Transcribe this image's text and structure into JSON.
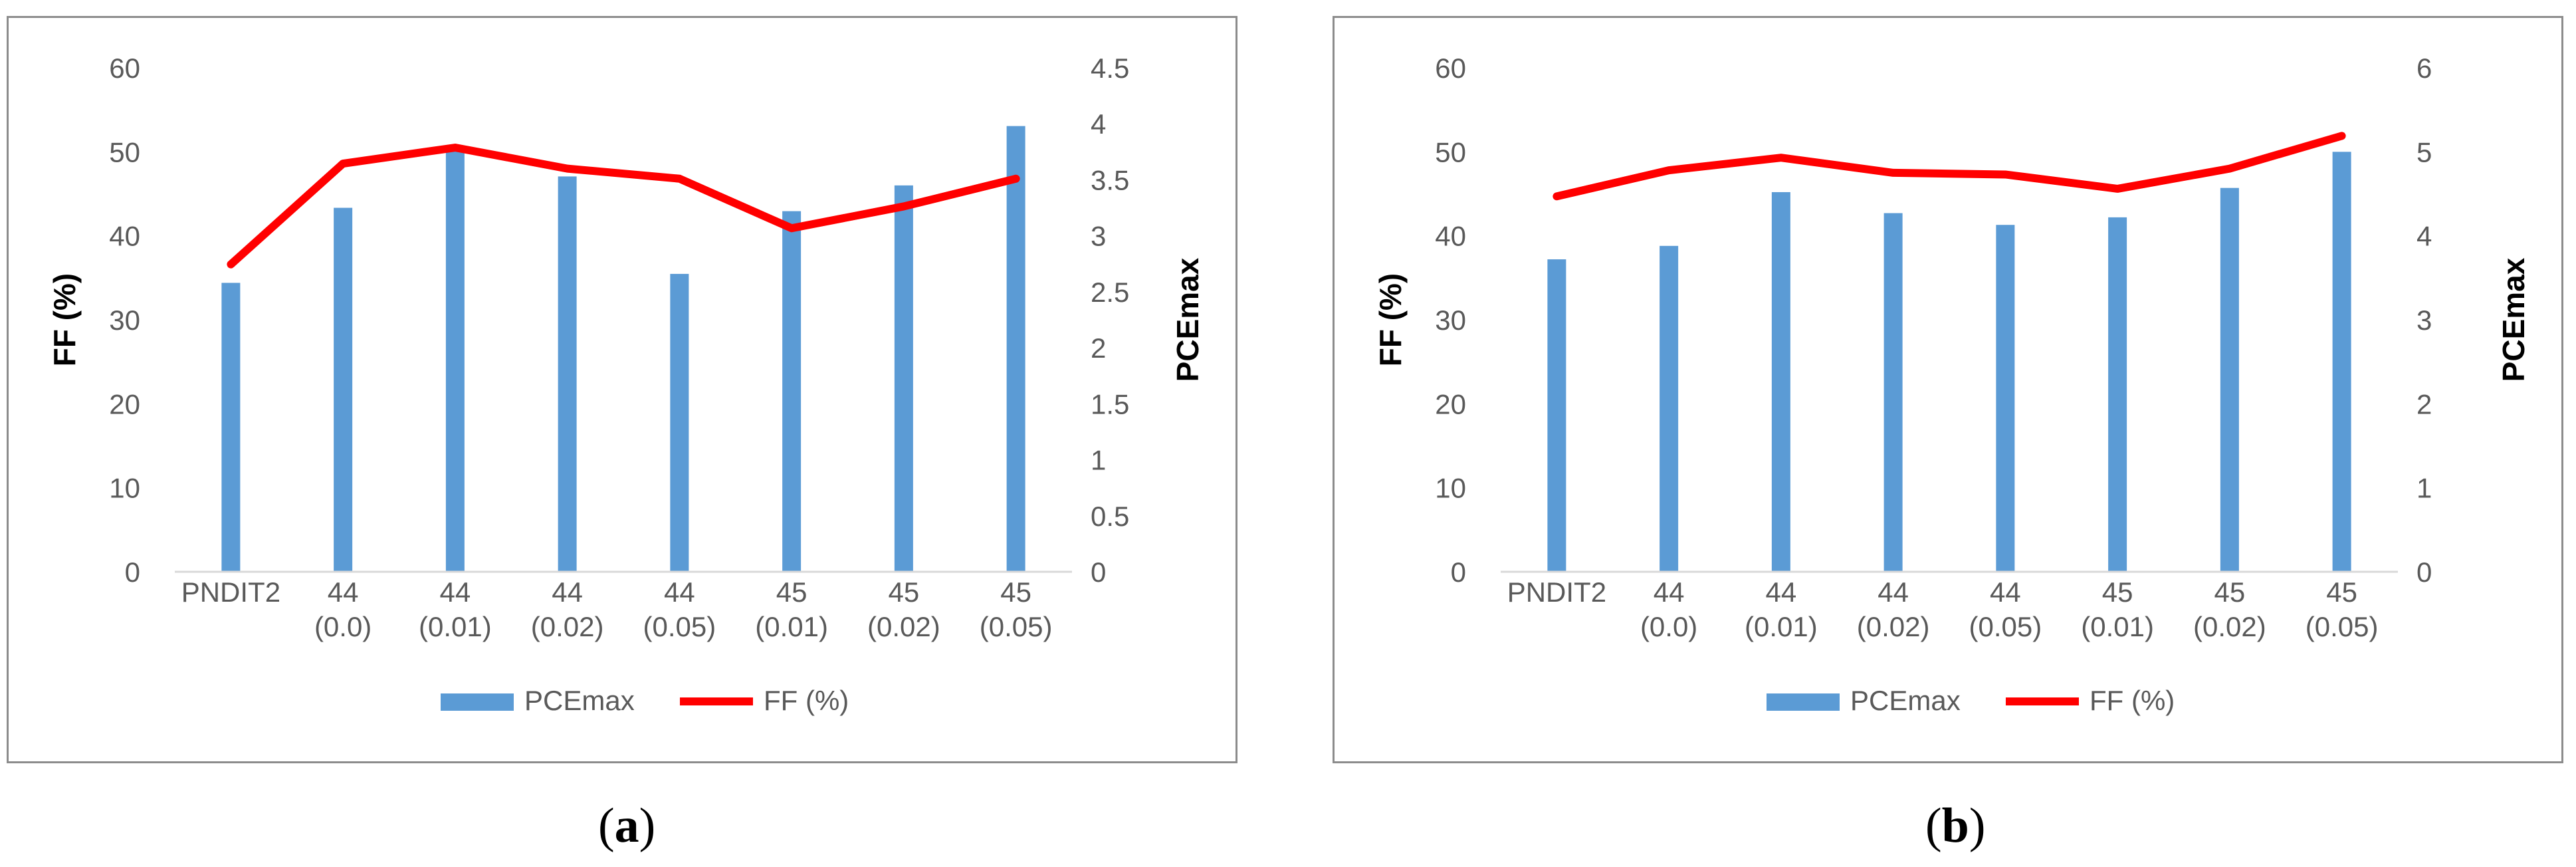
{
  "panels": [
    {
      "caption": "a",
      "chart_data": {
        "type": "bar+line",
        "categories": [
          [
            "PNDIT2"
          ],
          [
            "44",
            "(0.0)"
          ],
          [
            "44",
            "(0.01)"
          ],
          [
            "44",
            "(0.02)"
          ],
          [
            "44",
            "(0.05)"
          ],
          [
            "45",
            "(0.01)"
          ],
          [
            "45",
            "(0.02)"
          ],
          [
            "45",
            "(0.05)"
          ]
        ],
        "series": [
          {
            "name": "PCEmax",
            "type": "bar",
            "axis": "right",
            "values": [
              2.58,
              3.25,
              3.77,
              3.53,
              2.66,
              3.22,
              3.45,
              3.98
            ]
          },
          {
            "name": "FF (%)",
            "type": "line",
            "axis": "left",
            "values": [
              36.6,
              48.6,
              50.5,
              48.0,
              46.8,
              40.9,
              43.5,
              46.8
            ]
          }
        ],
        "ylabel_left": "FF (%)",
        "ylabel_right": "PCEmax",
        "ylim_left": [
          0,
          60
        ],
        "yticks_left": [
          "0",
          "10",
          "20",
          "30",
          "40",
          "50",
          "60"
        ],
        "ylim_right": [
          0,
          4.5
        ],
        "yticks_right": [
          "0",
          "0.5",
          "1",
          "1.5",
          "2",
          "2.5",
          "3",
          "3.5",
          "4",
          "4.5"
        ],
        "grid": false,
        "legend": "bottom"
      }
    },
    {
      "caption": "b",
      "chart_data": {
        "type": "bar+line",
        "categories": [
          [
            "PNDIT2"
          ],
          [
            "44",
            "(0.0)"
          ],
          [
            "44",
            "(0.01)"
          ],
          [
            "44",
            "(0.02)"
          ],
          [
            "44",
            "(0.05)"
          ],
          [
            "45",
            "(0.01)"
          ],
          [
            "45",
            "(0.02)"
          ],
          [
            "45",
            "(0.05)"
          ]
        ],
        "series": [
          {
            "name": "PCEmax",
            "type": "bar",
            "axis": "right",
            "values": [
              3.72,
              3.88,
              4.52,
              4.27,
              4.13,
              4.22,
              4.57,
              5.0
            ]
          },
          {
            "name": "FF (%)",
            "type": "line",
            "axis": "left",
            "values": [
              44.7,
              47.8,
              49.3,
              47.5,
              47.3,
              45.6,
              48.0,
              51.9
            ]
          }
        ],
        "ylabel_left": "FF (%)",
        "ylabel_right": "PCEmax",
        "ylim_left": [
          0,
          60
        ],
        "yticks_left": [
          "0",
          "10",
          "20",
          "30",
          "40",
          "50",
          "60"
        ],
        "ylim_right": [
          0,
          6
        ],
        "yticks_right": [
          "0",
          "1",
          "2",
          "3",
          "4",
          "5",
          "6"
        ],
        "grid": false,
        "legend": "bottom"
      }
    }
  ],
  "colors": {
    "bar": "#5b9bd5",
    "line": "#ff0000",
    "text": "#595959",
    "axis_label": "#000000"
  }
}
